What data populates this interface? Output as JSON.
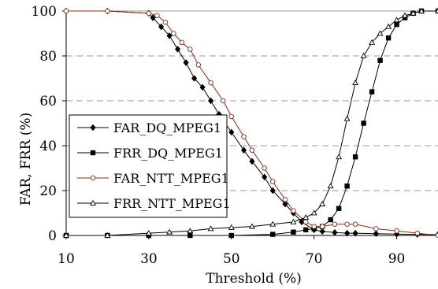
{
  "chart_data": {
    "type": "line",
    "xlabel": "Threshold (%)",
    "ylabel": "FAR, FRR (%)",
    "xlim": [
      10,
      100
    ],
    "ylim": [
      0,
      100
    ],
    "x_ticks": [
      10,
      30,
      50,
      70,
      90
    ],
    "y_ticks": [
      0,
      20,
      40,
      60,
      80,
      100
    ],
    "x_tick_labels": [
      "10",
      "30",
      "50",
      "70",
      "90"
    ],
    "y_tick_labels": [
      "0",
      "20",
      "40",
      "60",
      "80",
      "100"
    ],
    "grid": "horizontal dashed",
    "legend_position": "lower-left",
    "series": [
      {
        "name": "FAR_DQ_MPEG1",
        "marker": "filled-diamond",
        "color": "#000000",
        "x": [
          10,
          20,
          30,
          31,
          33,
          35,
          37,
          39,
          41,
          43,
          45,
          47,
          50,
          53,
          55,
          58,
          60,
          63,
          65,
          67,
          70,
          72,
          75,
          78,
          80,
          85,
          90,
          95,
          100
        ],
        "y": [
          100,
          100,
          99,
          97,
          93,
          89,
          83,
          77,
          70,
          66,
          60,
          54,
          46,
          38,
          33,
          26,
          20,
          14,
          10,
          6,
          2.5,
          1.8,
          1.3,
          1,
          1,
          0.8,
          0.6,
          0.5,
          0.4
        ]
      },
      {
        "name": "FRR_DQ_MPEG1",
        "marker": "filled-square",
        "color": "#000000",
        "x": [
          10,
          20,
          30,
          40,
          50,
          60,
          65,
          68,
          70,
          72,
          74,
          76,
          78,
          80,
          82,
          84,
          86,
          88,
          90,
          92,
          94,
          96,
          100
        ],
        "y": [
          0,
          0,
          0,
          0,
          0,
          0.5,
          1.5,
          2.5,
          3,
          4,
          7,
          12,
          22,
          35,
          50,
          64,
          78,
          88,
          94,
          97,
          99,
          100,
          100
        ]
      },
      {
        "name": "FAR_NTT_MPEG1",
        "marker": "open-circle",
        "color": "#8b2a1a",
        "x": [
          10,
          20,
          30,
          32,
          34,
          36,
          38,
          40,
          42,
          45,
          48,
          50,
          53,
          55,
          58,
          60,
          63,
          65,
          68,
          70,
          72,
          75,
          78,
          80,
          85,
          90,
          95,
          100
        ],
        "y": [
          100,
          100,
          99,
          98,
          95,
          90,
          86,
          83,
          76,
          68,
          60,
          53,
          44,
          38,
          30,
          24,
          16,
          11,
          6,
          4,
          4,
          5,
          5,
          5,
          3,
          2,
          1,
          0
        ]
      },
      {
        "name": "FRR_NTT_MPEG1",
        "marker": "open-triangle",
        "color": "#000000",
        "x": [
          10,
          20,
          30,
          35,
          40,
          45,
          50,
          55,
          60,
          65,
          68,
          70,
          72,
          74,
          76,
          78,
          80,
          82,
          84,
          86,
          88,
          90,
          92,
          94,
          96,
          100
        ],
        "y": [
          0,
          0,
          1,
          1.5,
          2,
          3,
          3.5,
          4,
          5,
          6,
          8,
          10,
          14,
          22,
          35,
          52,
          68,
          80,
          86,
          90,
          93,
          96,
          98,
          99,
          100,
          100
        ]
      }
    ]
  }
}
